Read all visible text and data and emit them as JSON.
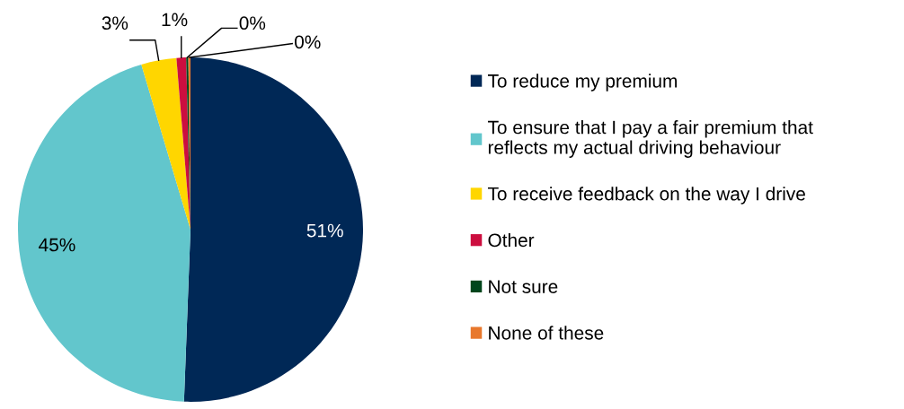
{
  "chart_data": {
    "type": "pie",
    "categories": [
      "To reduce my premium",
      "To ensure that I pay a fair premium that reflects my actual driving behaviour",
      "To receive feedback on the way I drive",
      "Other",
      "Not sure",
      "None of these"
    ],
    "values": [
      50.6,
      44.8,
      3.3,
      0.9,
      0.2,
      0.2
    ],
    "value_labels": [
      "51%",
      "45%",
      "3%",
      "1%",
      "0%",
      "0%"
    ],
    "colors": [
      "#002856",
      "#62c6cc",
      "#ffd600",
      "#cc0e3f",
      "#00461c",
      "#e8782c"
    ],
    "legend": "right"
  }
}
